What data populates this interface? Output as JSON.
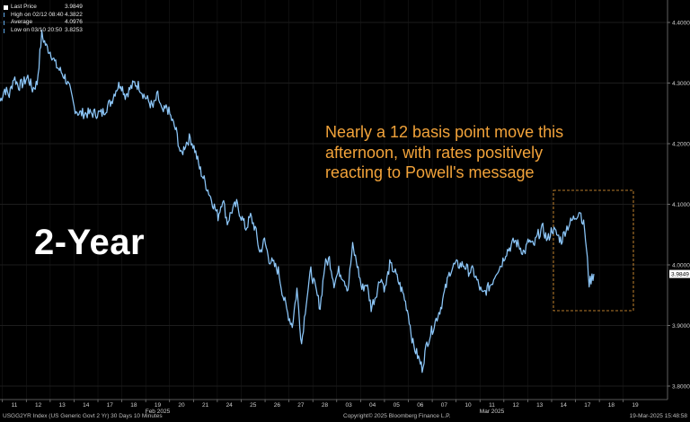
{
  "legend": [
    {
      "label": "Last Price",
      "value": "3.9849",
      "color": "#ffffff",
      "swatch": true
    },
    {
      "label": "High on 02/12 08:40",
      "value": "4.3822",
      "color": "#5fa8e8",
      "swatch": false
    },
    {
      "label": "Average",
      "value": "4.0976",
      "color": "#5fa8e8",
      "swatch": false
    },
    {
      "label": "Low on 03/10 20:50",
      "value": "3.8253",
      "color": "#5fa8e8",
      "swatch": false
    }
  ],
  "big_label": "2-Year",
  "annotation_lines": [
    "Nearly a 12 basis point move this",
    "afternoon, with rates positively",
    "reacting to Powell's message"
  ],
  "footer": {
    "left": "USGG2YR Index (US Generic Govt 2 Yr) 30 Days 10 Minutes",
    "center": "Copyright© 2025 Bloomberg Finance L.P.",
    "right": "19-Mar-2025 15:48:58"
  },
  "colors": {
    "line": "#6fb4ee",
    "annotation": "#f2a33a",
    "grid": "#3a3a3a",
    "background": "#000000"
  },
  "chart_data": {
    "type": "line",
    "ylim": [
      3.8,
      4.4
    ],
    "y_ticks": [
      "3.8000",
      "3.9000",
      "4.0000",
      "4.1000",
      "4.2000",
      "4.3000",
      "4.4000"
    ],
    "x_ticks": [
      "11",
      "12",
      "13",
      "14",
      "17",
      "18",
      "19",
      "20",
      "21",
      "24",
      "25",
      "26",
      "27",
      "28",
      "03",
      "04",
      "05",
      "06",
      "07",
      "10",
      "11",
      "12",
      "13",
      "14",
      "17",
      "18",
      "19"
    ],
    "month_labels": [
      {
        "label": "Feb 2025",
        "tick_index": 6
      },
      {
        "label": "Mar 2025",
        "tick_index": 20
      }
    ],
    "last_value_label": "3.9849",
    "series": [
      {
        "values": [
          4.27,
          4.29,
          4.28,
          4.31,
          4.295,
          4.3,
          4.31,
          4.29,
          4.3,
          4.38,
          4.36,
          4.35,
          4.33,
          4.32,
          4.31,
          4.29,
          4.26,
          4.25,
          4.25,
          4.25,
          4.25,
          4.25,
          4.25,
          4.26,
          4.27,
          4.29,
          4.3,
          4.28,
          4.29,
          4.3,
          4.295,
          4.28,
          4.27,
          4.26,
          4.28,
          4.25,
          4.26,
          4.24,
          4.22,
          4.18,
          4.2,
          4.21,
          4.19,
          4.16,
          4.14,
          4.12,
          4.1,
          4.08,
          4.11,
          4.07,
          4.09,
          4.1,
          4.08,
          4.06,
          4.08,
          4.06,
          4.02,
          4.04,
          4.01,
          4.0,
          3.99,
          3.95,
          3.92,
          3.9,
          3.96,
          3.87,
          3.94,
          3.99,
          3.96,
          3.93,
          4.0,
          4.01,
          3.97,
          3.99,
          3.98,
          3.96,
          4.03,
          4.0,
          3.96,
          3.97,
          3.93,
          3.95,
          3.98,
          3.96,
          4.0,
          3.99,
          3.97,
          3.95,
          3.92,
          3.87,
          3.85,
          3.83,
          3.87,
          3.89,
          3.91,
          3.93,
          3.96,
          3.99,
          4.0,
          4.0,
          4.0,
          3.99,
          3.99,
          3.97,
          3.95,
          3.96,
          3.97,
          3.99,
          4.0,
          4.02,
          4.03,
          4.04,
          4.03,
          4.02,
          4.04,
          4.03,
          4.05,
          4.06,
          4.04,
          4.06,
          4.05,
          4.04,
          4.06,
          4.07,
          4.08,
          4.09,
          4.06,
          3.97,
          3.985
        ]
      }
    ]
  }
}
